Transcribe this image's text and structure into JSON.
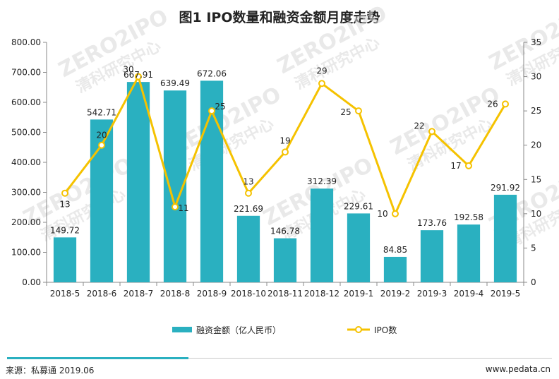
{
  "chart_data": {
    "type": "bar+line",
    "title": "图1 IPO数量和融资金额月度走势",
    "categories": [
      "2018-5",
      "2018-6",
      "2018-7",
      "2018-8",
      "2018-9",
      "2018-10",
      "2018-11",
      "2018-12",
      "2019-1",
      "2019-2",
      "2019-3",
      "2019-4",
      "2019-5"
    ],
    "series": [
      {
        "name": "融资金额（亿人民币）",
        "type": "bar",
        "axis": "left",
        "values": [
          149.72,
          542.71,
          667.91,
          639.49,
          672.06,
          221.69,
          146.78,
          312.39,
          229.61,
          84.85,
          173.76,
          192.58,
          291.92
        ],
        "labels": [
          "149.72",
          "542.71",
          "667.91",
          "639.49",
          "672.06",
          "221.69",
          "146.78",
          "312.39",
          "229.61",
          "84.85",
          "173.76",
          "192.58",
          "291.92"
        ]
      },
      {
        "name": "IPO数",
        "type": "line",
        "axis": "right",
        "values": [
          13,
          20,
          30,
          11,
          25,
          13,
          19,
          29,
          25,
          10,
          22,
          17,
          26
        ],
        "labels": [
          "13",
          "20",
          "30",
          "11",
          "25",
          "13",
          "19",
          "29",
          "25",
          "10",
          "22",
          "17",
          "26"
        ]
      }
    ],
    "y_left": {
      "min": 0,
      "max": 800,
      "ticks": [
        "0.00",
        "100.00",
        "200.00",
        "300.00",
        "400.00",
        "500.00",
        "600.00",
        "700.00",
        "800.00"
      ]
    },
    "y_right": {
      "min": 0,
      "max": 35,
      "ticks": [
        "0",
        "5",
        "10",
        "15",
        "20",
        "25",
        "30",
        "35"
      ]
    },
    "legend_position": "bottom",
    "colors": {
      "bar": "#2ab0c0",
      "line": "#f5c200",
      "marker_fill": "#ffffff",
      "axis": "#888888"
    }
  },
  "watermark": {
    "text": "ZERO2IPO",
    "subtext": "清科研究中心"
  },
  "footer": {
    "source": "来源：私募通 2019.06",
    "website": "www.pedata.cn"
  }
}
